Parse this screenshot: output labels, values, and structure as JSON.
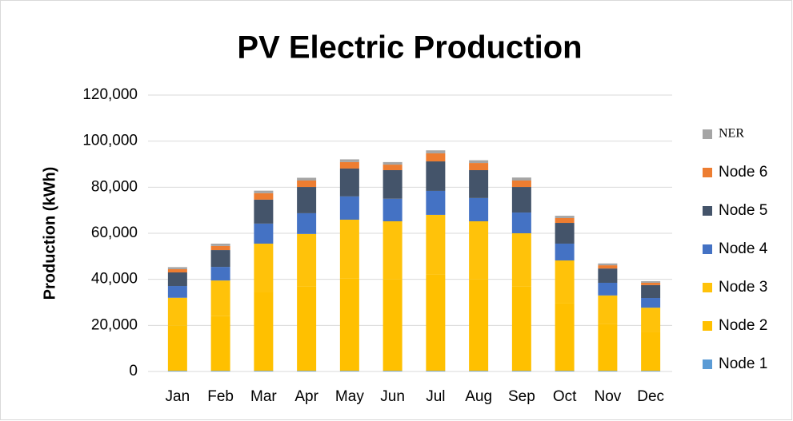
{
  "chart_data": {
    "type": "bar",
    "stacked": true,
    "title": "PV Electric Production",
    "y_label": "Production (kWh)",
    "categories": [
      "Jan",
      "Feb",
      "Mar",
      "Apr",
      "May",
      "Jun",
      "Jul",
      "Aug",
      "Sep",
      "Oct",
      "Nov",
      "Dec"
    ],
    "series": [
      {
        "name": "Node 1",
        "color": "#5b9bd5",
        "values": [
          300,
          300,
          300,
          300,
          300,
          300,
          300,
          300,
          300,
          300,
          300,
          300
        ]
      },
      {
        "name": "Node 2",
        "color": "#ffc000",
        "values": [
          19700,
          23700,
          34200,
          36700,
          40200,
          39700,
          41700,
          39700,
          36700,
          29200,
          20200,
          16700
        ]
      },
      {
        "name": "Node 3",
        "color": "#ffc20a",
        "values": [
          12000,
          15500,
          21000,
          22700,
          25400,
          25200,
          26000,
          25200,
          23000,
          18700,
          12500,
          10700
        ]
      },
      {
        "name": "Node 4",
        "color": "#4472c4",
        "values": [
          5100,
          5900,
          8700,
          9000,
          10100,
          9800,
          10400,
          10100,
          9000,
          7300,
          5500,
          4200
        ]
      },
      {
        "name": "Node 5",
        "color": "#44546a",
        "values": [
          5900,
          7300,
          10400,
          11400,
          12100,
          12400,
          12800,
          12100,
          11100,
          9000,
          6200,
          5600
        ]
      },
      {
        "name": "Node 6",
        "color": "#ed7d31",
        "values": [
          1400,
          1800,
          2800,
          2800,
          2800,
          2400,
          3500,
          3100,
          2800,
          2100,
          1400,
          1000
        ]
      },
      {
        "name": "NER",
        "color": "#a5a5a5",
        "values": [
          900,
          1000,
          1100,
          1200,
          1200,
          1100,
          1300,
          1200,
          1300,
          1000,
          800,
          700
        ]
      }
    ],
    "ylim": [
      0,
      120000
    ],
    "yticks": [
      0,
      {
        "value": 20000,
        "label": "20,000"
      },
      {
        "value": 40000,
        "label": "40,000"
      },
      {
        "value": 60000,
        "label": "60,000"
      },
      {
        "value": 80000,
        "label": "80,000"
      },
      {
        "value": 100000,
        "label": "100,000"
      },
      {
        "value": 120000,
        "label": "120,000"
      }
    ],
    "grid": true,
    "legend_position": "right"
  }
}
